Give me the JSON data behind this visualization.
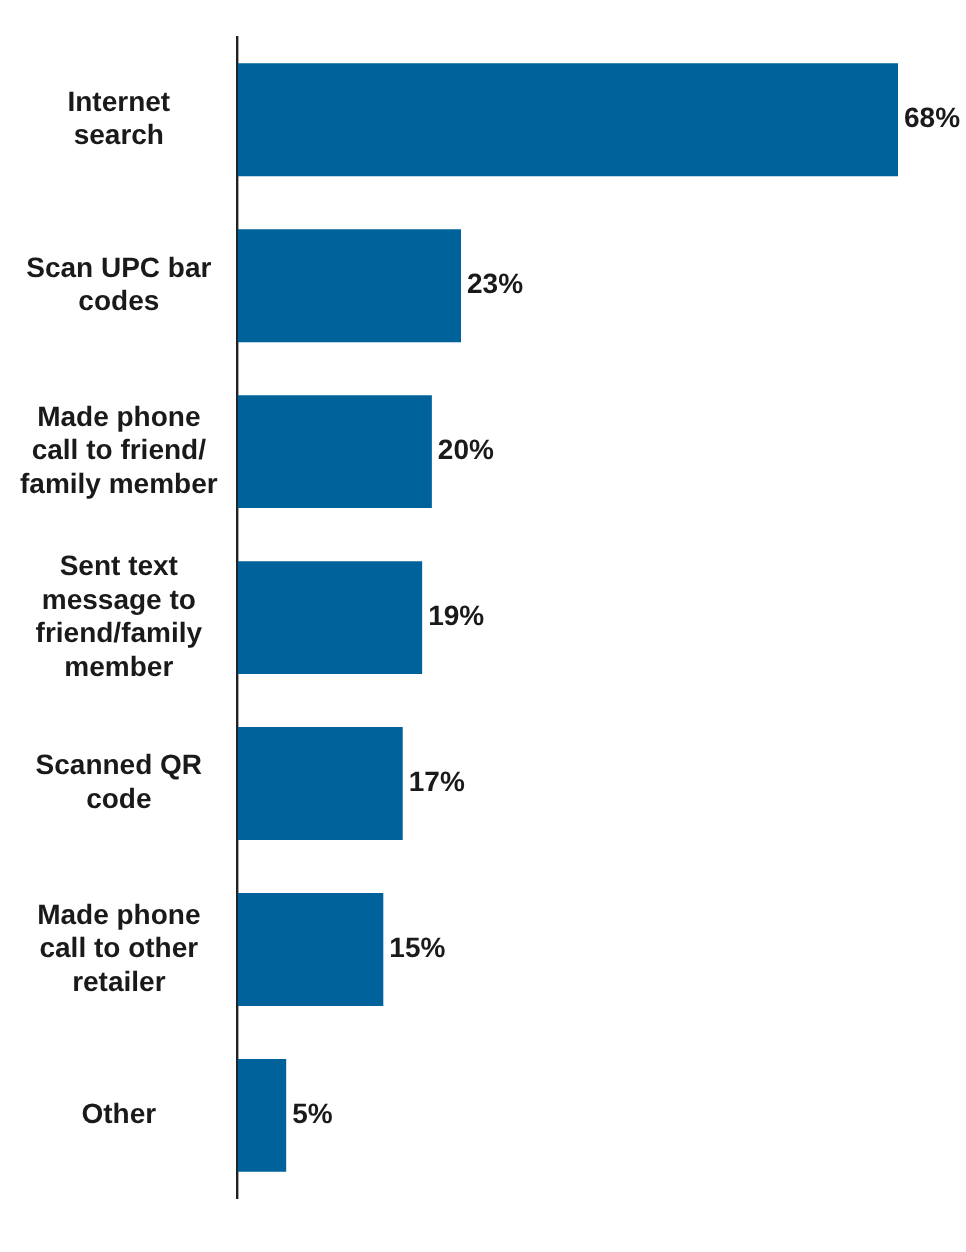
{
  "chart_data": {
    "type": "bar",
    "orientation": "horizontal",
    "categories": [
      "Internet search",
      "Scan UPC bar codes",
      "Made phone call to friend/ family member",
      "Sent text message to friend/family member",
      "Scanned QR code",
      "Made phone call to other retailer",
      "Other"
    ],
    "values": [
      68,
      23,
      20,
      19,
      17,
      15,
      5
    ],
    "value_labels": [
      "68%",
      "23%",
      "20%",
      "19%",
      "17%",
      "15%",
      "5%"
    ],
    "color": "#00629b"
  }
}
